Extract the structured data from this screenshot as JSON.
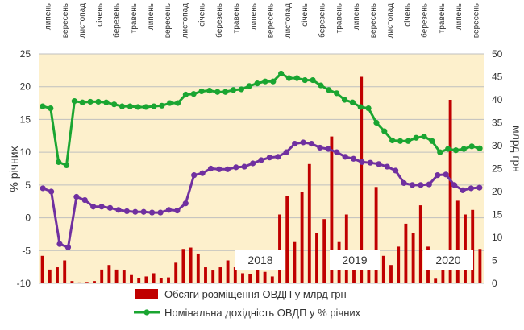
{
  "chart_data": {
    "type": "bar",
    "title": "",
    "x_tick_labels": [
      "липень",
      "вересень",
      "листопад",
      "січень",
      "березень",
      "травень",
      "липень",
      "вересень",
      "листопад",
      "січень",
      "березень",
      "травень",
      "липень",
      "вересень",
      "листопад",
      "січень",
      "березень",
      "травень",
      "липень",
      "вересень",
      "листопад",
      "січень",
      "березень",
      "травень",
      "липень",
      "вересень"
    ],
    "year_labels": [
      "2018",
      "2019",
      "2020"
    ],
    "ylabel_left": "% річних",
    "ylabel_right": "млрд грн",
    "ylim_left": [
      -10,
      25
    ],
    "ylim_right": [
      0,
      50
    ],
    "yticks_left": [
      "25",
      "20",
      "15",
      "10",
      "5",
      "0",
      "-5",
      "-10"
    ],
    "yticks_right": [
      "50",
      "45",
      "40",
      "35",
      "30",
      "25",
      "20",
      "15",
      "10",
      "5",
      "0"
    ],
    "colors": {
      "bars": "#c00000",
      "lines": "#1aa531",
      "plot_bg": "#fdf0cc",
      "grid": "#bfbfbf"
    },
    "series": [
      {
        "name": "Обсяги розміщення ОВДП у млрд грн",
        "type": "bar",
        "axis": "right",
        "values": [
          6,
          3,
          3.5,
          5,
          0.5,
          0.2,
          0.3,
          0.5,
          3,
          4,
          3,
          2.8,
          1.8,
          1.2,
          1.5,
          2.2,
          1.2,
          1.3,
          4.5,
          7.5,
          7.8,
          6.5,
          3.5,
          2.8,
          3.5,
          5,
          3.5,
          2.2,
          2,
          3.5,
          2.5,
          1.5,
          15,
          19,
          9,
          20,
          26,
          11,
          14,
          32,
          9,
          15,
          6,
          45,
          4,
          21,
          6,
          4,
          8,
          13,
          11,
          17,
          8,
          1,
          3,
          40,
          18,
          15,
          16,
          7.5
        ]
      },
      {
        "name": "Номінальна дохідність  ОВДП у % річних",
        "type": "line",
        "axis": "left",
        "values": [
          17,
          16.7,
          8.5,
          8,
          17.8,
          17.6,
          17.7,
          17.7,
          17.6,
          17.3,
          17,
          17,
          16.9,
          16.9,
          17,
          17.1,
          17.5,
          17.5,
          18.8,
          18.9,
          19.3,
          19.4,
          19.2,
          19.2,
          19.5,
          19.6,
          20.1,
          20.5,
          20.8,
          20.8,
          22,
          21.3,
          21.3,
          21,
          21,
          20.2,
          19.5,
          19,
          18,
          17.6,
          16.9,
          16.7,
          14.5,
          13.2,
          11.8,
          11.7,
          11.7,
          12.2,
          12.4,
          11.7,
          10,
          10.5,
          10.3,
          10.5,
          10.9,
          10.6
        ]
      },
      {
        "name": "",
        "type": "line",
        "axis": "left",
        "values": [
          4.5,
          4,
          -4,
          -4.5,
          3.2,
          2.7,
          1.7,
          1.7,
          1.5,
          1.2,
          1,
          0.9,
          0.9,
          0.8,
          0.8,
          1.2,
          1.1,
          2.2,
          6.5,
          6.8,
          7.5,
          7.4,
          7.4,
          7.7,
          7.8,
          8.3,
          8.8,
          9.2,
          9.3,
          10,
          11.3,
          11.5,
          11.3,
          10.7,
          10.5,
          10,
          9.3,
          9,
          8.5,
          8.4,
          8.2,
          7.8,
          7.2,
          5.3,
          5,
          5,
          5.1,
          6.5,
          6.6,
          5,
          4.2,
          4.5,
          4.6
        ]
      }
    ],
    "legend": "bottom"
  }
}
